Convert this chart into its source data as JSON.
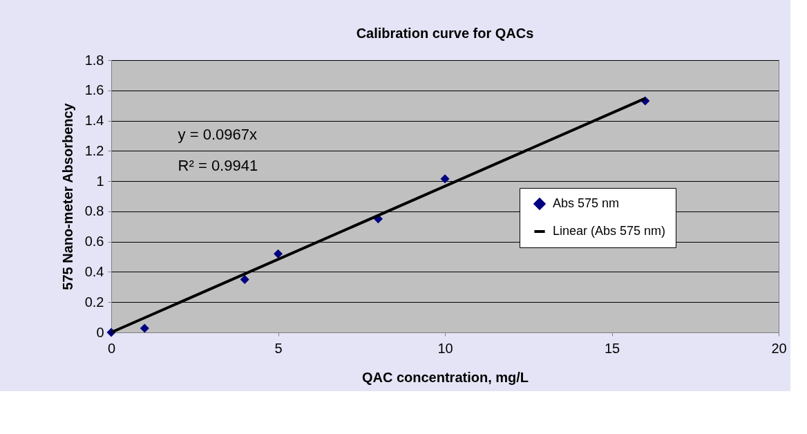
{
  "chart_data": {
    "type": "scatter",
    "title": "Calibration curve for QACs",
    "xlabel": "QAC concentration, mg/L",
    "ylabel": "575 Nano-meter Absorbency",
    "x": [
      0,
      1,
      4,
      5,
      8,
      10,
      16
    ],
    "series": [
      {
        "name": "Abs 575 nm",
        "color": "#000080",
        "marker": "diamond",
        "values": [
          0,
          0.027,
          0.35,
          0.52,
          0.75,
          1.015,
          1.53
        ]
      },
      {
        "name": "Linear (Abs 575 nm)",
        "type": "line",
        "color": "#000000",
        "x": [
          0,
          16
        ],
        "values": [
          0,
          1.547
        ],
        "line_style": "solid",
        "marker": "none"
      }
    ],
    "annotations": [
      "y = 0.0967x",
      "R² = 0.9941"
    ],
    "xlim": [
      0,
      20
    ],
    "xticks": [
      0,
      5,
      10,
      15,
      20
    ],
    "ylim": [
      0,
      1.8
    ],
    "yticks": [
      0,
      0.2,
      0.4,
      0.6,
      0.8,
      1,
      1.2,
      1.4,
      1.6,
      1.8
    ],
    "grid": "y",
    "legend": "right"
  }
}
